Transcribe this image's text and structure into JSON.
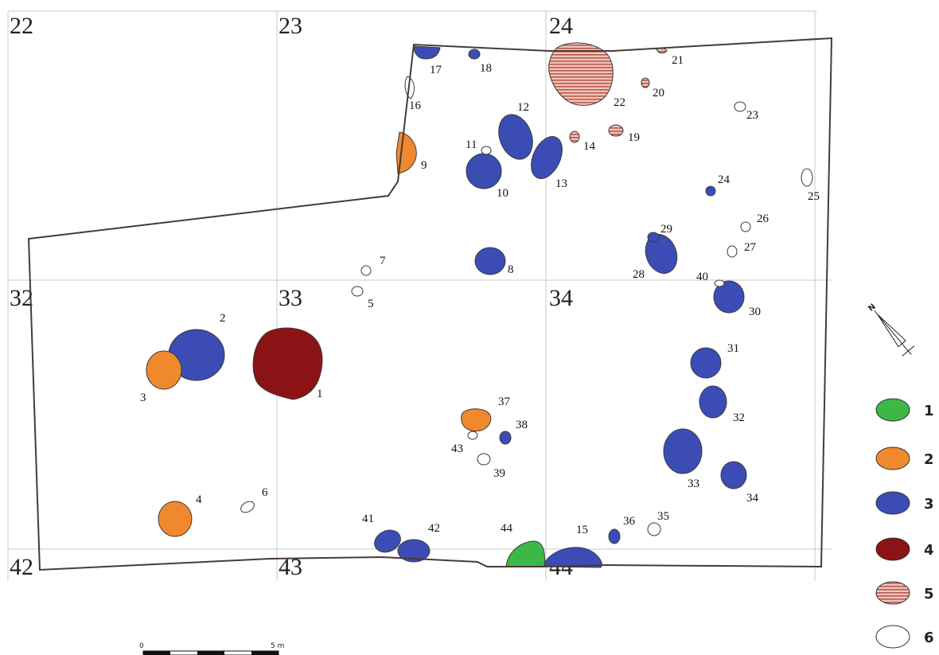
{
  "colors": {
    "c1": "#3cb846",
    "c2": "#f0892e",
    "c3": "#3b4db5",
    "c4": "#8b1316",
    "c5": "#e8a39a",
    "c5_stripe": "#b85a4c",
    "c6": "#ffffff",
    "outline": "#3a3a3a"
  },
  "squares": {
    "s22": "22",
    "s23": "23",
    "s24": "24",
    "s32": "32",
    "s33": "33",
    "s34": "34",
    "s42": "42",
    "s43": "43",
    "s44": "44"
  },
  "features": {
    "f1": "1",
    "f2": "2",
    "f3": "3",
    "f4": "4",
    "f5": "5",
    "f6": "6",
    "f7": "7",
    "f8": "8",
    "f9": "9",
    "f10": "10",
    "f11": "11",
    "f12": "12",
    "f13": "13",
    "f14": "14",
    "f15": "15",
    "f16": "16",
    "f17": "17",
    "f18": "18",
    "f19": "19",
    "f20": "20",
    "f21": "21",
    "f22": "22",
    "f23": "23",
    "f24": "24",
    "f25": "25",
    "f26": "26",
    "f27": "27",
    "f28": "28",
    "f29": "29",
    "f30": "30",
    "f31": "31",
    "f32": "32",
    "f33": "33",
    "f34": "34",
    "f35": "35",
    "f36": "36",
    "f37": "37",
    "f38": "38",
    "f39": "39",
    "f40": "40",
    "f41": "41",
    "f42": "42",
    "f43": "43",
    "f44": "44"
  },
  "legend": {
    "l1": "1",
    "l2": "2",
    "l3": "3",
    "l4": "4",
    "l5": "5",
    "l6": "6"
  },
  "scale": {
    "start": "0",
    "end": "5 m"
  },
  "north": {
    "label": "N"
  }
}
